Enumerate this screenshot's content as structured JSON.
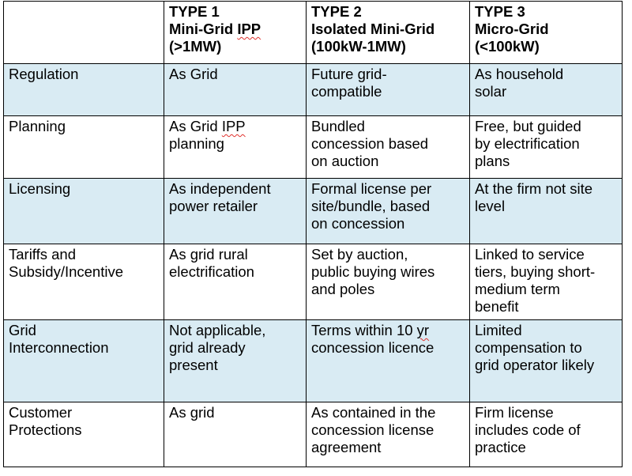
{
  "table": {
    "header": {
      "corner": "",
      "columns": [
        {
          "lines": [
            "TYPE 1",
            "Mini-Grid IPP",
            "(>1MW)"
          ]
        },
        {
          "lines": [
            "TYPE 2",
            "Isolated Mini-Grid",
            "(100kW-1MW)"
          ]
        },
        {
          "lines": [
            "TYPE 3",
            "Micro-Grid",
            "(<100kW)"
          ]
        }
      ]
    },
    "rows": [
      {
        "label": [
          "Regulation"
        ],
        "cells": [
          [
            "As Grid"
          ],
          [
            "Future grid-",
            "compatible"
          ],
          [
            "As household",
            "solar"
          ]
        ]
      },
      {
        "label": [
          "Planning"
        ],
        "cells": [
          [
            "As Grid IPP",
            "planning"
          ],
          [
            "Bundled",
            "concession based",
            "on auction"
          ],
          [
            "Free, but guided",
            "by electrification",
            "plans"
          ]
        ]
      },
      {
        "label": [
          "Licensing"
        ],
        "cells": [
          [
            "As independent",
            "power retailer"
          ],
          [
            "Formal license per",
            "site/bundle, based",
            "on concession"
          ],
          [
            "At the firm not site",
            "level"
          ]
        ]
      },
      {
        "label": [
          "Tariffs and",
          "Subsidy/Incentive"
        ],
        "cells": [
          [
            "As grid rural",
            "electrification"
          ],
          [
            "Set by auction,",
            "public buying wires",
            "and poles"
          ],
          [
            "Linked to service",
            "tiers, buying short-",
            "medium term",
            "benefit"
          ]
        ]
      },
      {
        "label": [
          "Grid",
          "Interconnection"
        ],
        "cells": [
          [
            "Not applicable,",
            "grid already",
            "present"
          ],
          [
            "Terms within 10 yr",
            "concession licence"
          ],
          [
            "Limited",
            "compensation to",
            "grid operator likely"
          ]
        ]
      },
      {
        "label": [
          "Customer",
          "Protections"
        ],
        "cells": [
          [
            "As grid"
          ],
          [
            "As contained in the",
            "concession license",
            "agreement"
          ],
          [
            "Firm license",
            "includes code of",
            "practice"
          ]
        ]
      }
    ]
  }
}
